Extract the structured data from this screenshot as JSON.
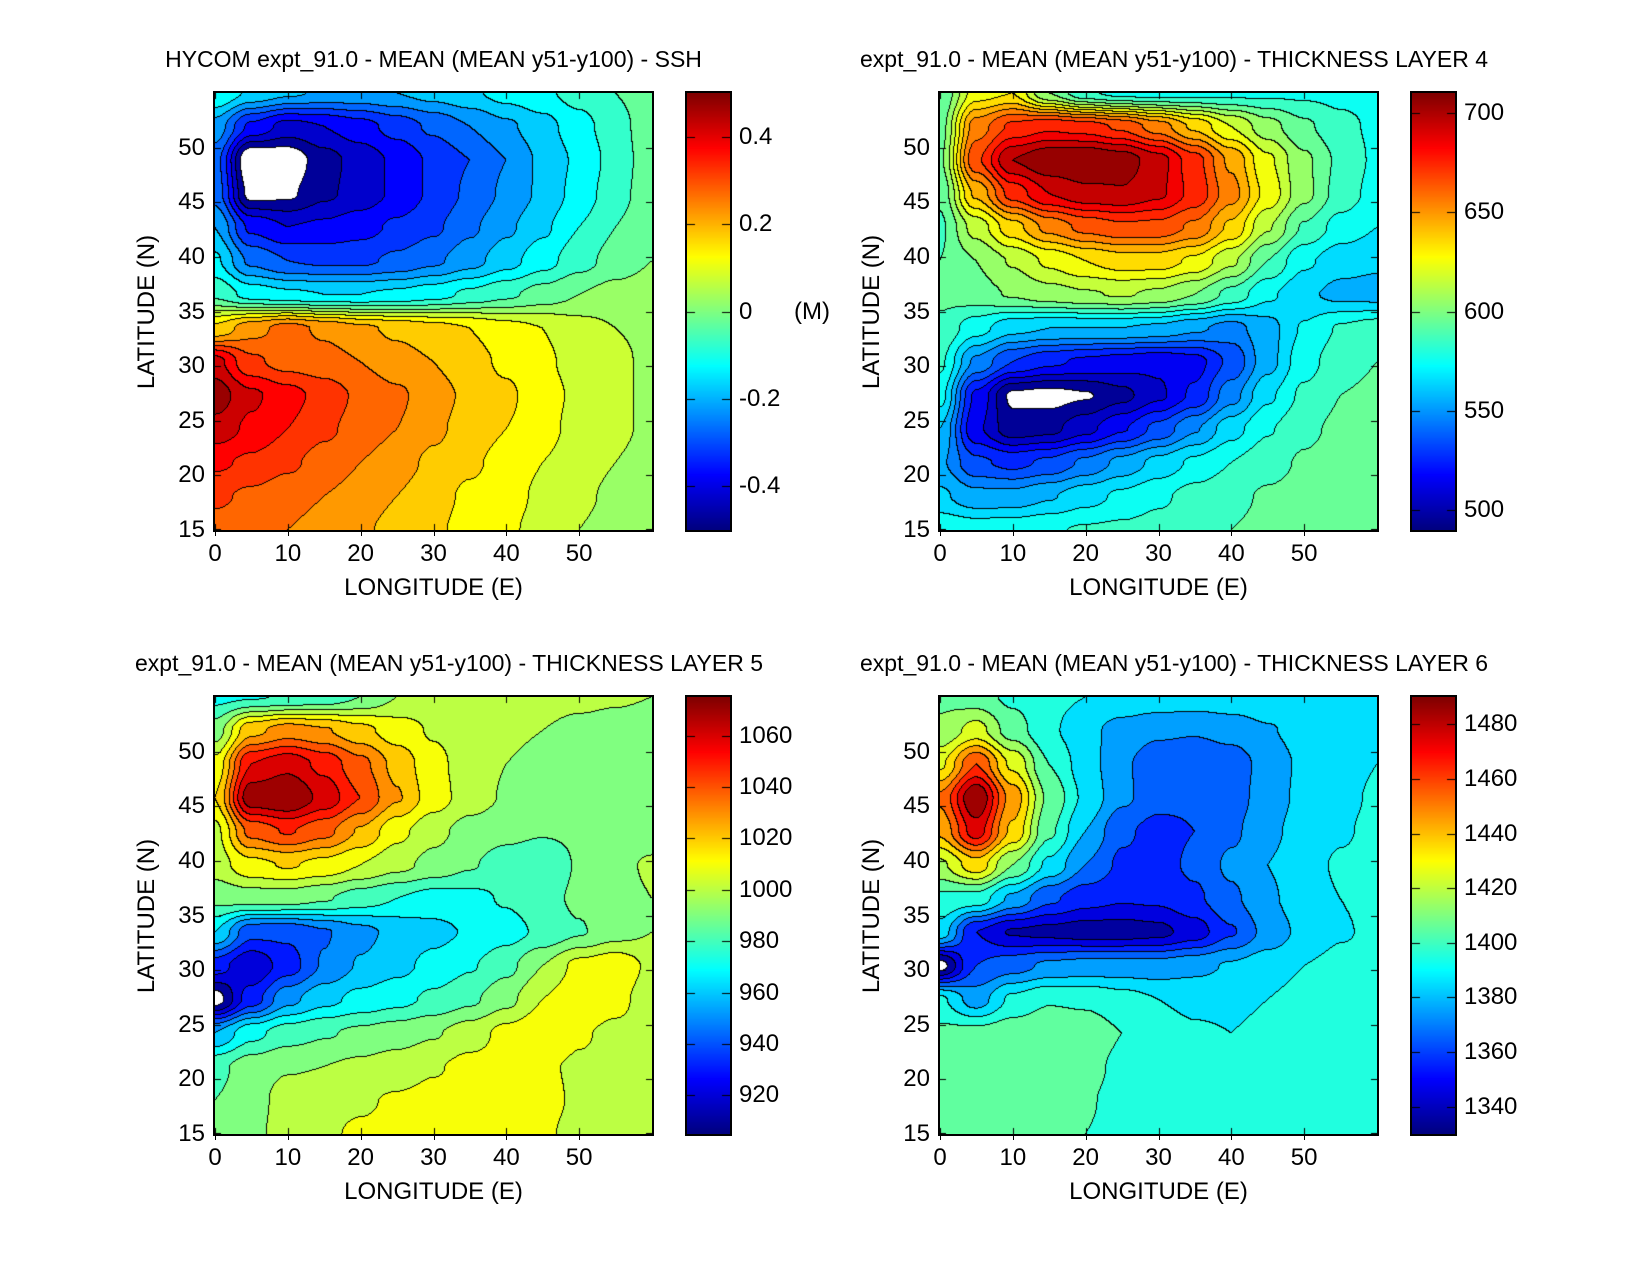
{
  "figure": {
    "background": "#ffffff",
    "colormap": "jet",
    "contour_line_color": "#000000"
  },
  "chart_data": [
    {
      "type": "filled_contour",
      "title": "HYCOM expt_91.0 - MEAN (MEAN y51-y100) - SSH",
      "xlabel": "LONGITUDE (E)",
      "ylabel": "LATITUDE (N)",
      "x_range": [
        0,
        60
      ],
      "y_range": [
        15,
        55
      ],
      "xticks": [
        0,
        10,
        20,
        30,
        40,
        50
      ],
      "yticks": [
        15,
        20,
        25,
        30,
        35,
        40,
        45,
        50
      ],
      "n_levels": 20,
      "colorbar": {
        "min": -0.5,
        "max": 0.5,
        "ticks": [
          {
            "value": 0.4,
            "label": "0.4"
          },
          {
            "value": 0.2,
            "label": "0.2"
          },
          {
            "value": 0,
            "label": "0"
          },
          {
            "value": -0.2,
            "label": "-0.2"
          },
          {
            "value": -0.4,
            "label": "-0.4"
          }
        ],
        "unit": "(M)",
        "unit_at_value": 0
      },
      "grid": {
        "lon_min": 0,
        "lon_max": 60,
        "lat_min": 15,
        "lat_max": 55,
        "values": [
          [
            -0.1,
            -0.16,
            -0.19,
            -0.21,
            -0.21,
            -0.2,
            -0.18,
            -0.16,
            -0.13,
            -0.11,
            -0.08,
            -0.05,
            -0.02
          ],
          [
            -0.22,
            -0.36,
            -0.42,
            -0.4,
            -0.37,
            -0.33,
            -0.29,
            -0.25,
            -0.21,
            -0.17,
            -0.12,
            -0.07,
            -0.02
          ],
          [
            -0.28,
            -0.56,
            -0.54,
            -0.47,
            -0.43,
            -0.39,
            -0.34,
            -0.3,
            -0.25,
            -0.19,
            -0.14,
            -0.08,
            -0.02
          ],
          [
            -0.27,
            -0.52,
            -0.51,
            -0.46,
            -0.43,
            -0.39,
            -0.34,
            -0.29,
            -0.24,
            -0.19,
            -0.13,
            -0.07,
            -0.02
          ],
          [
            -0.2,
            -0.36,
            -0.4,
            -0.39,
            -0.37,
            -0.34,
            -0.31,
            -0.26,
            -0.21,
            -0.16,
            -0.1,
            -0.05,
            -0.01
          ],
          [
            -0.14,
            -0.26,
            -0.3,
            -0.31,
            -0.31,
            -0.29,
            -0.26,
            -0.22,
            -0.17,
            -0.12,
            -0.07,
            -0.03,
            0.0
          ],
          [
            -0.06,
            -0.12,
            -0.14,
            -0.15,
            -0.15,
            -0.14,
            -0.12,
            -0.09,
            -0.06,
            -0.03,
            0.0,
            0.02,
            0.03
          ],
          [
            0.16,
            0.23,
            0.27,
            0.24,
            0.21,
            0.19,
            0.17,
            0.15,
            0.12,
            0.1,
            0.07,
            0.05,
            0.04
          ],
          [
            0.42,
            0.31,
            0.28,
            0.27,
            0.25,
            0.22,
            0.2,
            0.17,
            0.14,
            0.11,
            0.08,
            0.06,
            0.04
          ],
          [
            0.48,
            0.41,
            0.37,
            0.33,
            0.29,
            0.26,
            0.22,
            0.19,
            0.16,
            0.12,
            0.09,
            0.06,
            0.04
          ],
          [
            0.43,
            0.39,
            0.35,
            0.31,
            0.28,
            0.25,
            0.21,
            0.18,
            0.15,
            0.12,
            0.08,
            0.06,
            0.04
          ],
          [
            0.36,
            0.34,
            0.31,
            0.28,
            0.25,
            0.22,
            0.19,
            0.16,
            0.13,
            0.1,
            0.07,
            0.05,
            0.03
          ],
          [
            0.31,
            0.29,
            0.27,
            0.25,
            0.23,
            0.2,
            0.17,
            0.14,
            0.12,
            0.09,
            0.06,
            0.04,
            0.02
          ],
          [
            0.28,
            0.26,
            0.25,
            0.23,
            0.21,
            0.18,
            0.16,
            0.13,
            0.11,
            0.08,
            0.05,
            0.03,
            0.02
          ]
        ]
      }
    },
    {
      "type": "filled_contour",
      "title": "expt_91.0 - MEAN (MEAN y51-y100) - THICKNESS LAYER 4",
      "xlabel": "LONGITUDE (E)",
      "ylabel": "LATITUDE (N)",
      "x_range": [
        0,
        60
      ],
      "y_range": [
        15,
        55
      ],
      "xticks": [
        0,
        10,
        20,
        30,
        40,
        50
      ],
      "yticks": [
        15,
        20,
        25,
        30,
        35,
        40,
        45,
        50
      ],
      "n_levels": 22,
      "colorbar": {
        "min": 490,
        "max": 710,
        "ticks": [
          {
            "value": 700,
            "label": "700"
          },
          {
            "value": 650,
            "label": "650"
          },
          {
            "value": 600,
            "label": "600"
          },
          {
            "value": 550,
            "label": "550"
          },
          {
            "value": 500,
            "label": "500"
          }
        ]
      },
      "grid": {
        "lon_min": 0,
        "lon_max": 60,
        "lat_min": 15,
        "lat_max": 55,
        "values": [
          [
            590,
            625,
            630,
            600,
            582,
            576,
            575,
            576,
            577,
            578,
            578,
            577,
            576
          ],
          [
            595,
            655,
            672,
            678,
            675,
            668,
            655,
            638,
            620,
            604,
            592,
            583,
            578
          ],
          [
            598,
            668,
            700,
            709,
            711,
            706,
            694,
            674,
            648,
            622,
            602,
            588,
            578
          ],
          [
            592,
            642,
            674,
            690,
            697,
            699,
            692,
            677,
            654,
            627,
            603,
            586,
            576
          ],
          [
            588,
            614,
            636,
            653,
            663,
            668,
            667,
            658,
            638,
            611,
            589,
            576,
            570
          ],
          [
            590,
            600,
            611,
            622,
            630,
            635,
            635,
            628,
            612,
            590,
            572,
            564,
            562
          ],
          [
            592,
            596,
            601,
            606,
            609,
            611,
            608,
            600,
            587,
            572,
            562,
            557,
            556
          ],
          [
            588,
            574,
            563,
            560,
            560,
            560,
            558,
            552,
            546,
            556,
            571,
            581,
            585
          ],
          [
            582,
            548,
            530,
            522,
            518,
            515,
            512,
            516,
            532,
            556,
            576,
            586,
            590
          ],
          [
            574,
            518,
            488,
            486,
            489,
            497,
            508,
            522,
            546,
            568,
            582,
            590,
            592
          ],
          [
            560,
            512,
            494,
            497,
            507,
            519,
            533,
            549,
            566,
            579,
            588,
            592,
            594
          ],
          [
            552,
            532,
            527,
            532,
            542,
            553,
            563,
            572,
            580,
            587,
            591,
            594,
            595
          ],
          [
            562,
            553,
            553,
            559,
            566,
            572,
            578,
            584,
            588,
            591,
            593,
            595,
            596
          ],
          [
            578,
            576,
            577,
            579,
            581,
            582,
            584,
            587,
            590,
            592,
            594,
            595,
            595
          ]
        ]
      }
    },
    {
      "type": "filled_contour",
      "title": "expt_91.0 - MEAN (MEAN y51-y100) - THICKNESS LAYER 5",
      "xlabel": "LONGITUDE (E)",
      "ylabel": "LATITUDE (N)",
      "x_range": [
        0,
        60
      ],
      "y_range": [
        15,
        55
      ],
      "xticks": [
        0,
        10,
        20,
        30,
        40,
        50
      ],
      "yticks": [
        15,
        20,
        25,
        30,
        35,
        40,
        45,
        50
      ],
      "n_levels": 17,
      "colorbar": {
        "min": 905,
        "max": 1075,
        "ticks": [
          {
            "value": 1060,
            "label": "1060"
          },
          {
            "value": 1040,
            "label": "1040"
          },
          {
            "value": 1020,
            "label": "1020"
          },
          {
            "value": 1000,
            "label": "1000"
          },
          {
            "value": 980,
            "label": "980"
          },
          {
            "value": 960,
            "label": "960"
          },
          {
            "value": 940,
            "label": "940"
          },
          {
            "value": 920,
            "label": "920"
          }
        ]
      },
      "grid": {
        "lon_min": 0,
        "lon_max": 60,
        "lat_min": 15,
        "lat_max": 55,
        "values": [
          [
            972,
            974,
            976,
            978,
            985,
            995,
            1000,
            1000,
            999,
            998,
            997,
            996,
            995
          ],
          [
            990,
            1022,
            1030,
            1026,
            1018,
            1010,
            1004,
            1000,
            997,
            995,
            993,
            992,
            991
          ],
          [
            1008,
            1055,
            1062,
            1052,
            1038,
            1022,
            1008,
            1000,
            995,
            992,
            990,
            989,
            988
          ],
          [
            1015,
            1072,
            1076,
            1062,
            1045,
            1026,
            1010,
            1000,
            994,
            991,
            990,
            989,
            988
          ],
          [
            1002,
            1038,
            1046,
            1038,
            1024,
            1008,
            998,
            991,
            988,
            986,
            987,
            989,
            991
          ],
          [
            1000,
            1012,
            1016,
            1012,
            1005,
            998,
            992,
            986,
            980,
            976,
            986,
            993,
            996
          ],
          [
            988,
            990,
            990,
            986,
            980,
            975,
            971,
            972,
            976,
            981,
            987,
            992,
            995
          ],
          [
            965,
            938,
            937,
            944,
            952,
            958,
            962,
            966,
            971,
            977,
            984,
            991,
            995
          ],
          [
            930,
            916,
            930,
            946,
            956,
            962,
            968,
            974,
            982,
            995,
            1008,
            1012,
            1003
          ],
          [
            900,
            930,
            952,
            962,
            968,
            972,
            977,
            983,
            992,
            1005,
            1013,
            1008,
            1000
          ],
          [
            955,
            972,
            980,
            984,
            987,
            990,
            994,
            1000,
            1008,
            1013,
            1006,
            1003,
            1001
          ],
          [
            982,
            990,
            994,
            995,
            997,
            1000,
            1004,
            1008,
            1009,
            1006,
            1004,
            1003,
            1002
          ],
          [
            985,
            990,
            1000,
            1003,
            1004,
            1006,
            1008,
            1009,
            1009,
            1007,
            1004,
            1002,
            1000
          ],
          [
            988,
            992,
            1000,
            1004,
            1006,
            1007,
            1008,
            1009,
            1008,
            1006,
            1003,
            1001,
            999
          ]
        ]
      }
    },
    {
      "type": "filled_contour",
      "title": "expt_91.0 - MEAN (MEAN y51-y100) - THICKNESS LAYER 6",
      "xlabel": "LONGITUDE (E)",
      "ylabel": "LATITUDE (N)",
      "x_range": [
        0,
        60
      ],
      "y_range": [
        15,
        55
      ],
      "xticks": [
        0,
        10,
        20,
        30,
        40,
        50
      ],
      "yticks": [
        15,
        20,
        25,
        30,
        35,
        40,
        45,
        50
      ],
      "n_levels": 16,
      "colorbar": {
        "min": 1330,
        "max": 1490,
        "ticks": [
          {
            "value": 1480,
            "label": "1480"
          },
          {
            "value": 1460,
            "label": "1460"
          },
          {
            "value": 1440,
            "label": "1440"
          },
          {
            "value": 1420,
            "label": "1420"
          },
          {
            "value": 1400,
            "label": "1400"
          },
          {
            "value": 1380,
            "label": "1380"
          },
          {
            "value": 1360,
            "label": "1360"
          },
          {
            "value": 1340,
            "label": "1340"
          }
        ]
      },
      "grid": {
        "lon_min": 0,
        "lon_max": 60,
        "lat_min": 15,
        "lat_max": 55,
        "values": [
          [
            1408,
            1404,
            1398,
            1393,
            1390,
            1388,
            1387,
            1386,
            1387,
            1388,
            1389,
            1390,
            1390
          ],
          [
            1412,
            1424,
            1405,
            1392,
            1383,
            1376,
            1372,
            1371,
            1374,
            1379,
            1384,
            1388,
            1390
          ],
          [
            1428,
            1460,
            1428,
            1400,
            1385,
            1372,
            1363,
            1360,
            1364,
            1374,
            1382,
            1387,
            1390
          ],
          [
            1452,
            1490,
            1446,
            1408,
            1388,
            1372,
            1364,
            1362,
            1366,
            1374,
            1383,
            1388,
            1391
          ],
          [
            1442,
            1475,
            1438,
            1402,
            1380,
            1362,
            1356,
            1360,
            1368,
            1377,
            1385,
            1389,
            1392
          ],
          [
            1418,
            1436,
            1410,
            1388,
            1370,
            1358,
            1356,
            1362,
            1372,
            1380,
            1387,
            1391,
            1393
          ],
          [
            1398,
            1396,
            1378,
            1362,
            1354,
            1351,
            1352,
            1358,
            1368,
            1378,
            1386,
            1390,
            1393
          ],
          [
            1386,
            1350,
            1339,
            1337,
            1335,
            1335,
            1337,
            1345,
            1359,
            1373,
            1383,
            1389,
            1392
          ],
          [
            1326,
            1360,
            1366,
            1372,
            1374,
            1374,
            1374,
            1377,
            1381,
            1386,
            1390,
            1393,
            1395
          ],
          [
            1392,
            1375,
            1392,
            1399,
            1398,
            1394,
            1390,
            1388,
            1388,
            1390,
            1393,
            1395,
            1396
          ],
          [
            1402,
            1403,
            1406,
            1409,
            1406,
            1400,
            1394,
            1391,
            1390,
            1392,
            1395,
            1396,
            1397
          ],
          [
            1404,
            1407,
            1409,
            1407,
            1403,
            1398,
            1394,
            1392,
            1391,
            1393,
            1395,
            1396,
            1397
          ],
          [
            1404,
            1406,
            1407,
            1405,
            1401,
            1397,
            1394,
            1392,
            1392,
            1393,
            1395,
            1396,
            1396
          ],
          [
            1403,
            1405,
            1405,
            1403,
            1400,
            1397,
            1394,
            1393,
            1393,
            1394,
            1395,
            1395,
            1396
          ]
        ]
      }
    }
  ]
}
